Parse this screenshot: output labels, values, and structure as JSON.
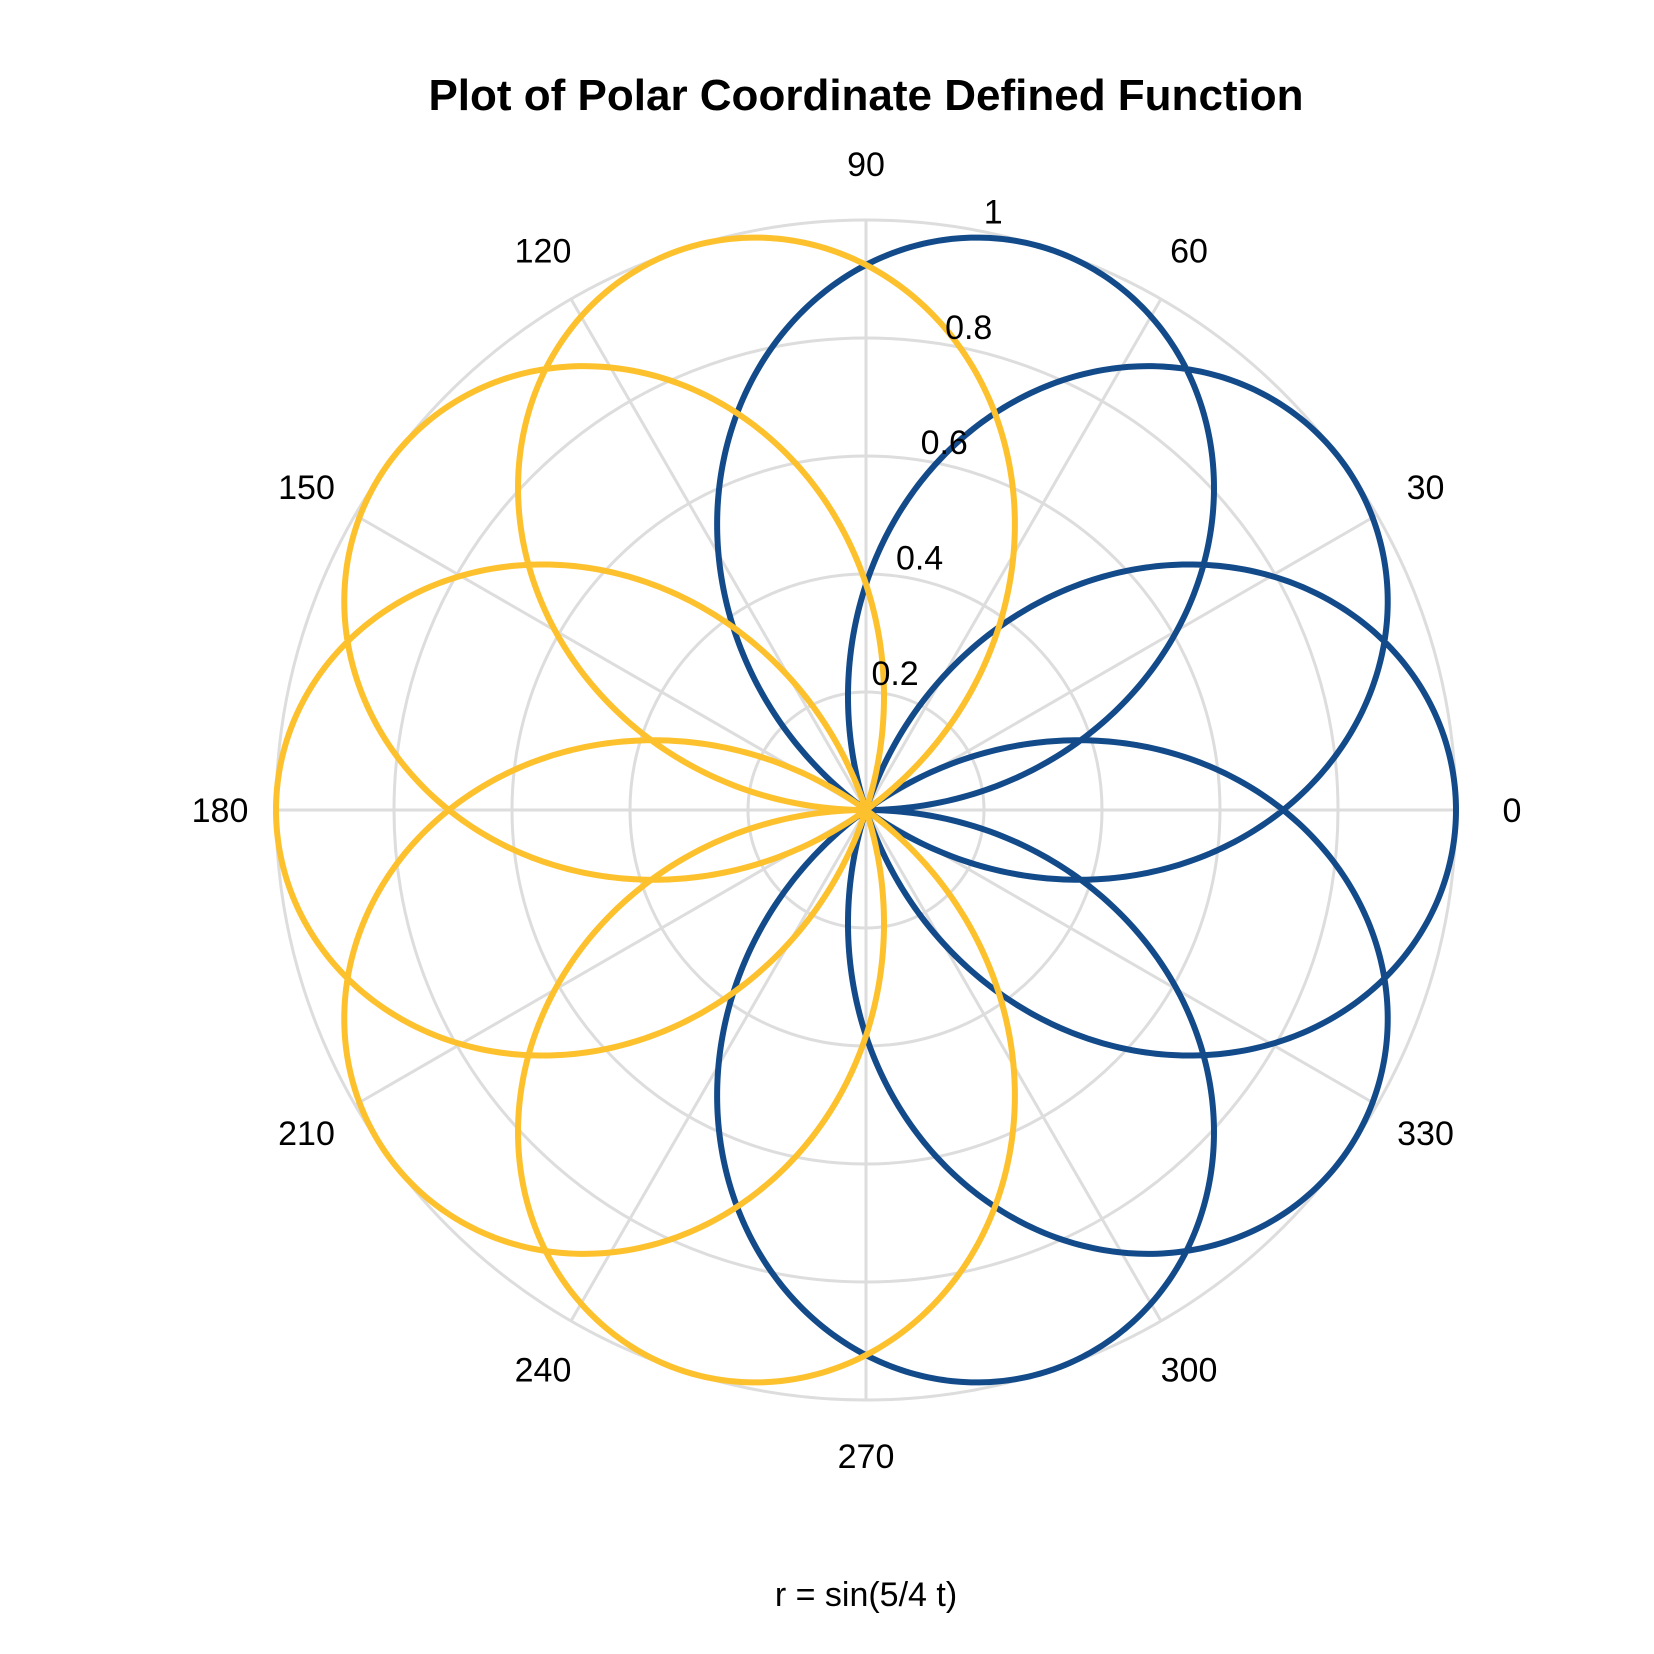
{
  "chart_data": {
    "type": "line",
    "title": "Plot of Polar Coordinate Defined Function",
    "xlabel": "r = sin(5/4 t)",
    "angular_ticks": [
      "0",
      "30",
      "60",
      "90",
      "120",
      "150",
      "180",
      "210",
      "240",
      "270",
      "300",
      "330"
    ],
    "angular_tick_degrees": [
      0,
      30,
      60,
      90,
      120,
      150,
      180,
      210,
      240,
      270,
      300,
      330
    ],
    "radial_ticks": [
      "0.2",
      "0.4",
      "0.6",
      "0.8",
      "1"
    ],
    "radial_tick_values": [
      0.2,
      0.4,
      0.6,
      0.8,
      1.0
    ],
    "rlim": [
      0,
      1
    ],
    "grid": true,
    "function": "r = sin(5/4 t)",
    "series": [
      {
        "t_range_deg": [
          0,
          720
        ],
        "color": "#134b8a"
      },
      {
        "t_range_deg": [
          720,
          1440
        ],
        "color": "#fcc12d"
      }
    ]
  }
}
